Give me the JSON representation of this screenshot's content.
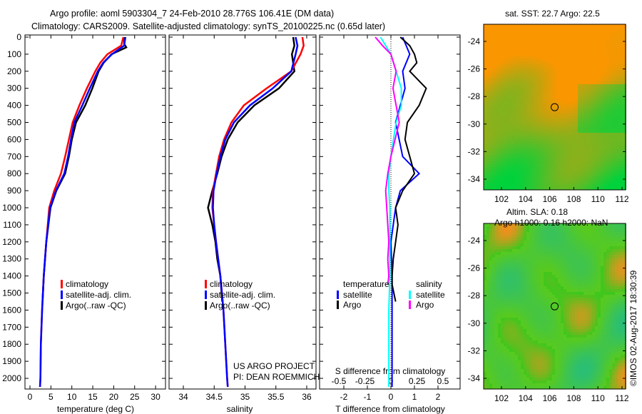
{
  "title": {
    "line1": "Argo profile: aoml 5903304_7 24-Feb-2010 28.776S 106.41E (DM data)",
    "line2": "Climatology: CARS2009. Satellite-adjusted climatology: synTS_20100225.nc (0.65d later)"
  },
  "colors": {
    "climatology": "#ff0000",
    "satellite": "#0000ff",
    "argo": "#000000",
    "sal_sat": "#00ffff",
    "sal_argo": "#ff00ff"
  },
  "chart_data": [
    {
      "type": "line",
      "name": "temperature",
      "xlabel": "temperature (deg C)",
      "ylabel": "",
      "xlim": [
        -1.5,
        31
      ],
      "ylim": [
        2050,
        0
      ],
      "xticks": [
        0,
        5,
        10,
        15,
        20,
        25,
        30
      ],
      "yticks": [
        0,
        100,
        200,
        300,
        400,
        500,
        600,
        700,
        800,
        900,
        1000,
        1100,
        1200,
        1300,
        1400,
        1500,
        1600,
        1700,
        1800,
        1900,
        2000
      ],
      "legend": [
        "climatology",
        "satellite-adj. clim.",
        "Argo(..raw -QC)"
      ],
      "series": [
        {
          "name": "climatology",
          "depth": [
            0,
            50,
            100,
            150,
            200,
            300,
            400,
            500,
            600,
            700,
            800,
            900,
            1000,
            1200,
            1400,
            1600,
            1800,
            2000,
            2050
          ],
          "values": [
            22.3,
            21.8,
            18.5,
            16.8,
            15.6,
            13.6,
            11.8,
            10.2,
            9.3,
            8.4,
            7.4,
            5.8,
            4.6,
            3.9,
            3.3,
            2.9,
            2.6,
            2.5,
            2.4
          ]
        },
        {
          "name": "satellite-adj. clim.",
          "depth": [
            0,
            50,
            100,
            150,
            200,
            300,
            400,
            500,
            600,
            700,
            800,
            900,
            1000,
            1200,
            1400,
            1600,
            1800,
            2000,
            2050
          ],
          "values": [
            22.8,
            22.5,
            19.6,
            17.5,
            16.2,
            14.3,
            12.5,
            10.6,
            9.8,
            9.1,
            8.2,
            6.2,
            4.8,
            3.9,
            3.3,
            2.9,
            2.6,
            2.5,
            2.4
          ]
        },
        {
          "name": "Argo(..raw -QC)",
          "depth": [
            0,
            40,
            60,
            100,
            150,
            200,
            300,
            400,
            500,
            600,
            700,
            800,
            900,
            1000,
            1200,
            1400,
            1550
          ],
          "values": [
            22.6,
            22.5,
            23.0,
            19.5,
            17.6,
            16.4,
            14.9,
            13.2,
            11.0,
            10.0,
            9.3,
            8.4,
            6.3,
            4.9,
            3.9,
            3.3,
            3.0
          ]
        }
      ]
    },
    {
      "type": "line",
      "name": "salinity",
      "xlabel": "salinity",
      "xlim": [
        33.8,
        36.1
      ],
      "ylim": [
        2050,
        0
      ],
      "xticks": [
        34,
        34.5,
        35,
        35.5,
        36
      ],
      "legend": [
        "climatology",
        "satellite-adj. clim.",
        "Argo(..raw -QC)"
      ],
      "series": [
        {
          "name": "climatology",
          "depth": [
            0,
            50,
            100,
            200,
            300,
            400,
            500,
            600,
            700,
            800,
            900,
            1000,
            1100,
            1200,
            1400,
            1600,
            1800,
            2000,
            2050
          ],
          "values": [
            35.93,
            35.95,
            35.9,
            35.75,
            35.35,
            34.98,
            34.78,
            34.66,
            34.58,
            34.53,
            34.48,
            34.47,
            34.5,
            34.53,
            34.6,
            34.65,
            34.68,
            34.71,
            34.72
          ]
        },
        {
          "name": "satellite-adj. clim.",
          "depth": [
            0,
            50,
            100,
            200,
            300,
            400,
            500,
            600,
            700,
            800,
            900,
            1000,
            1100,
            1200,
            1400,
            1600,
            1800,
            2000,
            2050
          ],
          "values": [
            35.82,
            35.85,
            35.82,
            35.75,
            35.45,
            35.08,
            34.82,
            34.68,
            34.6,
            34.54,
            34.49,
            34.48,
            34.5,
            34.53,
            34.6,
            34.65,
            34.68,
            34.71,
            34.72
          ]
        },
        {
          "name": "Argo(..raw -QC)",
          "depth": [
            0,
            50,
            100,
            200,
            300,
            400,
            500,
            600,
            700,
            800,
            900,
            1000,
            1100,
            1200,
            1300,
            1400,
            1550
          ],
          "values": [
            35.78,
            35.8,
            35.76,
            35.8,
            35.55,
            35.15,
            34.88,
            34.72,
            34.62,
            34.55,
            34.47,
            34.4,
            34.47,
            34.52,
            34.55,
            34.6,
            34.63
          ]
        }
      ],
      "annotations": [
        "US ARGO PROJECT",
        "PI: DEAN ROEMMICH"
      ]
    },
    {
      "type": "line",
      "name": "difference",
      "xlabel": "T difference from climatology",
      "x2label": "S difference from climatology",
      "xlim": [
        -3,
        3
      ],
      "xticks": [
        -2,
        -1,
        0,
        1,
        2
      ],
      "x2lim": [
        -0.65,
        0.65
      ],
      "x2ticks": [
        -0.5,
        -0.25,
        0,
        0.25,
        0.5
      ],
      "legend_t_title": "temperature",
      "legend_s_title": "salinity",
      "legend_t": [
        "satellite",
        "Argo"
      ],
      "legend_s": [
        "satellite",
        "Argo"
      ],
      "series": [
        {
          "name": "T satellite",
          "depth": [
            0,
            100,
            200,
            300,
            400,
            500,
            700,
            800,
            900,
            1000,
            1100,
            1200,
            1400,
            1600,
            2000,
            2050
          ],
          "values": [
            0.5,
            0.8,
            0.5,
            0.6,
            0.4,
            0.2,
            0.5,
            1.2,
            0.4,
            0.2,
            0.1,
            0.0,
            0.05,
            0.05,
            0.05,
            0.05
          ]
        },
        {
          "name": "T Argo",
          "depth": [
            0,
            50,
            100,
            150,
            200,
            300,
            400,
            500,
            600,
            700,
            800,
            900,
            1000,
            1100,
            1200,
            1300,
            1400,
            1450,
            1550
          ],
          "values": [
            0.4,
            0.8,
            1.0,
            1.1,
            0.8,
            1.5,
            1.2,
            0.7,
            0.6,
            0.8,
            1.0,
            0.5,
            0.2,
            0.3,
            0.2,
            0.1,
            0.05,
            0.05,
            0.2
          ]
        },
        {
          "name": "S satellite",
          "depth": [
            0,
            50,
            100,
            200,
            300,
            400,
            500,
            700,
            800,
            900,
            1000,
            1200,
            1400,
            1600,
            2000,
            2050
          ],
          "values": [
            -0.1,
            -0.05,
            0.0,
            0.05,
            0.1,
            0.1,
            0.05,
            0.0,
            -0.02,
            -0.02,
            -0.01,
            -0.01,
            -0.01,
            -0.02,
            -0.02,
            -0.02
          ]
        },
        {
          "name": "S Argo",
          "depth": [
            0,
            50,
            100,
            200,
            300,
            400,
            500,
            700,
            800,
            900,
            1000,
            1200,
            1300,
            1400,
            1450
          ],
          "values": [
            -0.15,
            -0.08,
            0.0,
            0.05,
            0.02,
            0.05,
            0.08,
            0.0,
            -0.03,
            -0.05,
            -0.04,
            -0.02,
            -0.03,
            -0.02,
            -0.03
          ]
        }
      ]
    }
  ],
  "maps": [
    {
      "title": "sat. SST: 22.7 Argo: 22.5",
      "lat_ticks": [
        -24,
        -26,
        -28,
        -30,
        -32,
        -34
      ],
      "lon_ticks": [
        102,
        104,
        106,
        108,
        110,
        112
      ],
      "argo_lon": 106.41,
      "argo_lat": -28.776
    },
    {
      "title1": "Altim. SLA: 0.18",
      "title2": "Argo h1000: 0.16 h2000: NaN",
      "lat_ticks": [
        -24,
        -26,
        -28,
        -30,
        -32,
        -34
      ],
      "lon_ticks": [
        102,
        104,
        106,
        108,
        110,
        112
      ],
      "argo_lon": 106.41,
      "argo_lat": -28.776
    }
  ],
  "footer": "©IMOS 02-Aug-2017 18:30:39"
}
